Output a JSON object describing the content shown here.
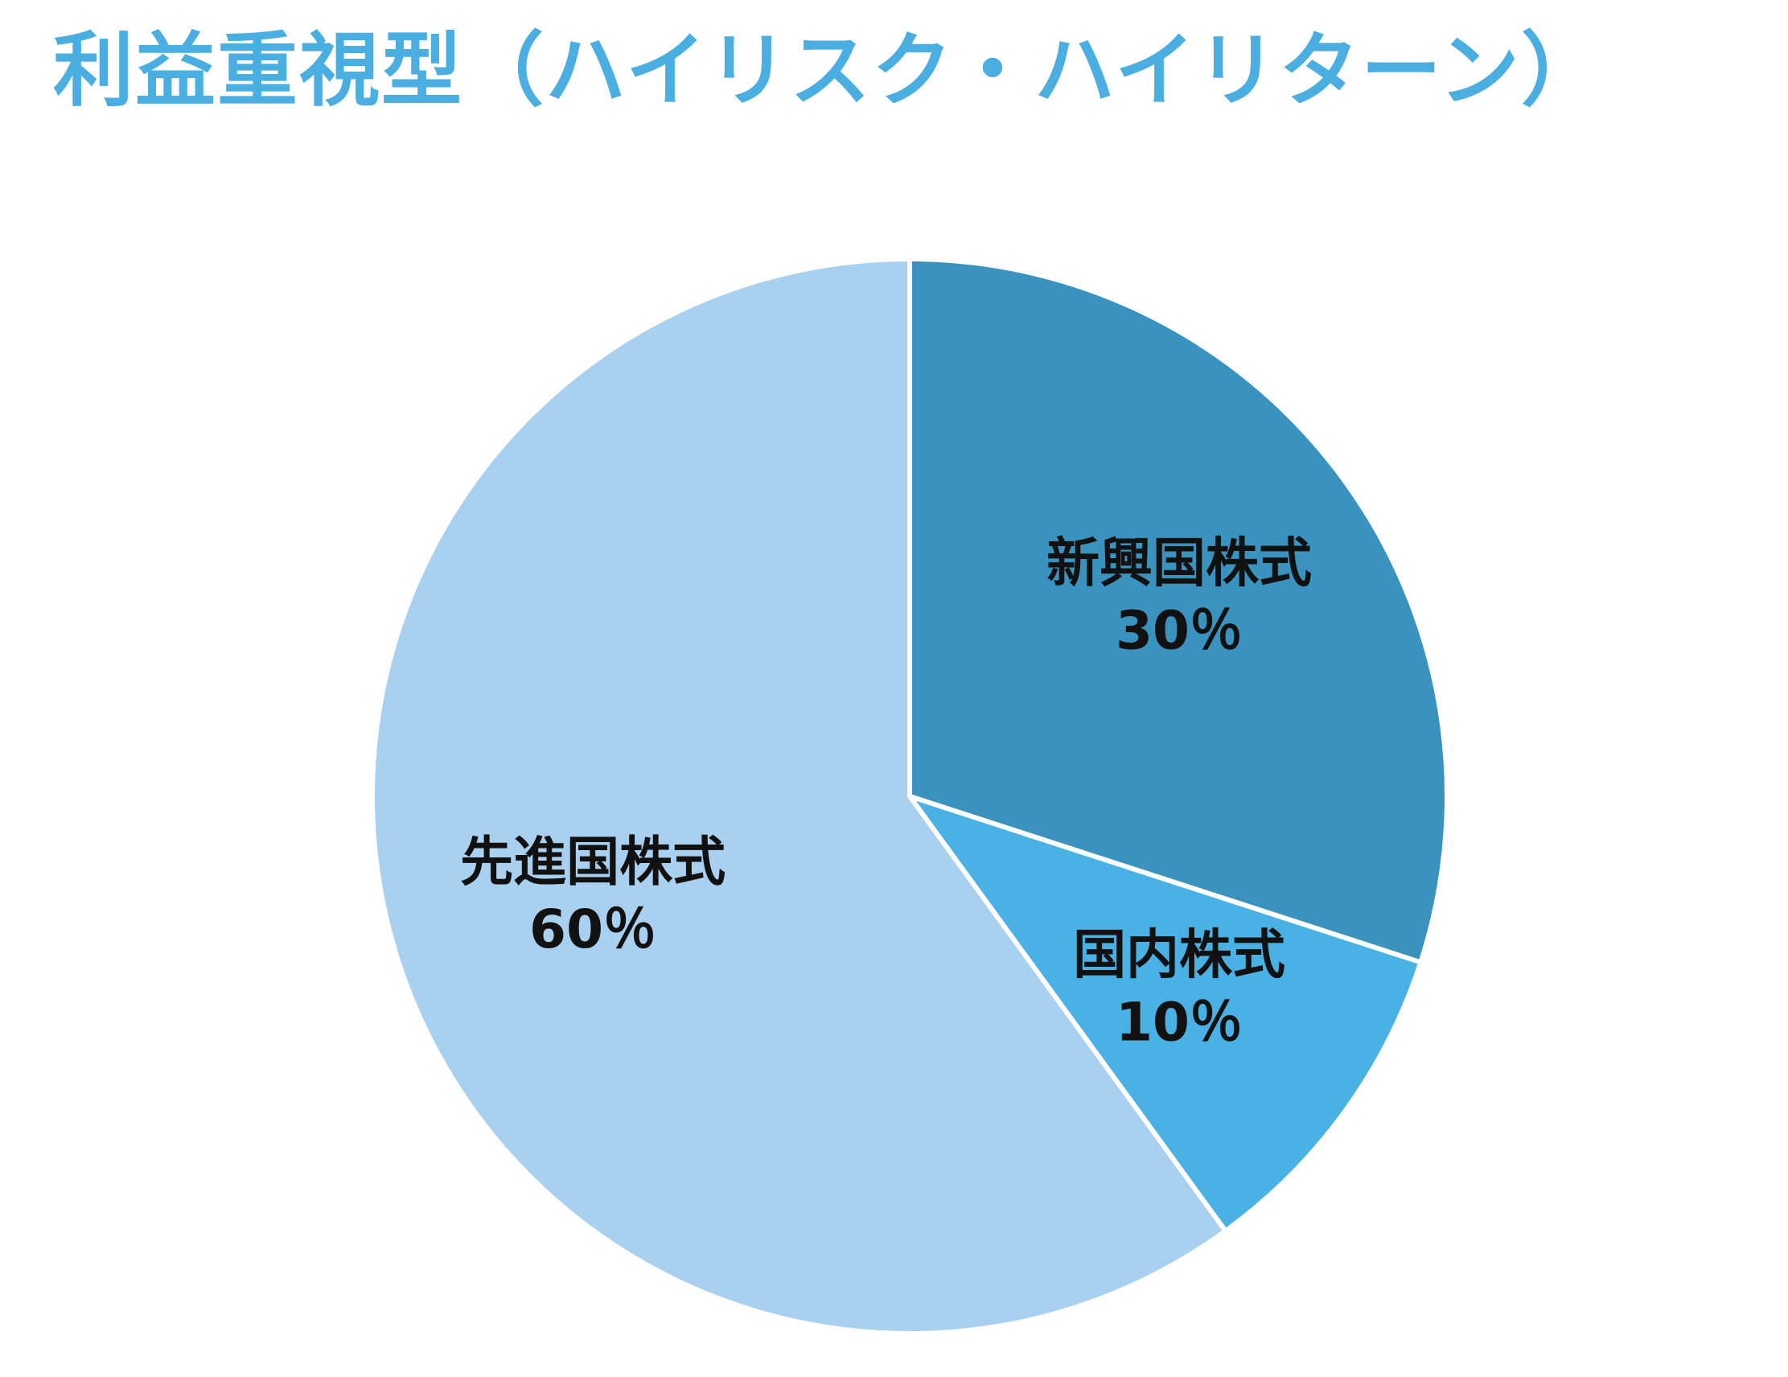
{
  "title": "利益重視型（ハイリスク・ハイリターン）",
  "title_color": "#4aaee0",
  "chart_data": {
    "type": "pie",
    "title": "利益重視型（ハイリスク・ハイリターン）",
    "start_angle_deg": 0,
    "direction": "clockwise",
    "slices": [
      {
        "label": "新興国株式",
        "value": 30,
        "value_label": "30％",
        "color": "#3a92bf"
      },
      {
        "label": "国内株式",
        "value": 10,
        "value_label": "10％",
        "color": "#4ab1e4"
      },
      {
        "label": "先進国株式",
        "value": 60,
        "value_label": "60％",
        "color": "#a9d0ef"
      }
    ]
  }
}
